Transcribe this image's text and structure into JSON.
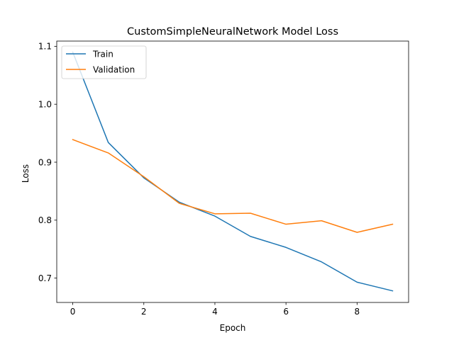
{
  "chart_data": {
    "type": "line",
    "title": "CustomSimpleNeuralNetwork Model Loss",
    "xlabel": "Epoch",
    "ylabel": "Loss",
    "x": [
      0,
      1,
      2,
      3,
      4,
      5,
      6,
      7,
      8,
      9
    ],
    "xlim": [
      -0.45,
      9.45
    ],
    "ylim": [
      0.658,
      1.109
    ],
    "xticks": [
      0,
      2,
      4,
      6,
      8
    ],
    "yticks": [
      0.7,
      0.8,
      0.9,
      1.0,
      1.1
    ],
    "xtick_labels": [
      "0",
      "2",
      "4",
      "6",
      "8"
    ],
    "ytick_labels": [
      "0.7",
      "0.8",
      "0.9",
      "1.0",
      "1.1"
    ],
    "grid": false,
    "legend_position": "top-left",
    "series": [
      {
        "name": "Train",
        "color": "#1f77b4",
        "values": [
          1.09,
          0.934,
          0.873,
          0.831,
          0.807,
          0.772,
          0.753,
          0.728,
          0.693,
          0.678
        ]
      },
      {
        "name": "Validation",
        "color": "#ff7f0e",
        "values": [
          0.939,
          0.916,
          0.875,
          0.829,
          0.811,
          0.812,
          0.793,
          0.799,
          0.779,
          0.793
        ]
      }
    ]
  }
}
